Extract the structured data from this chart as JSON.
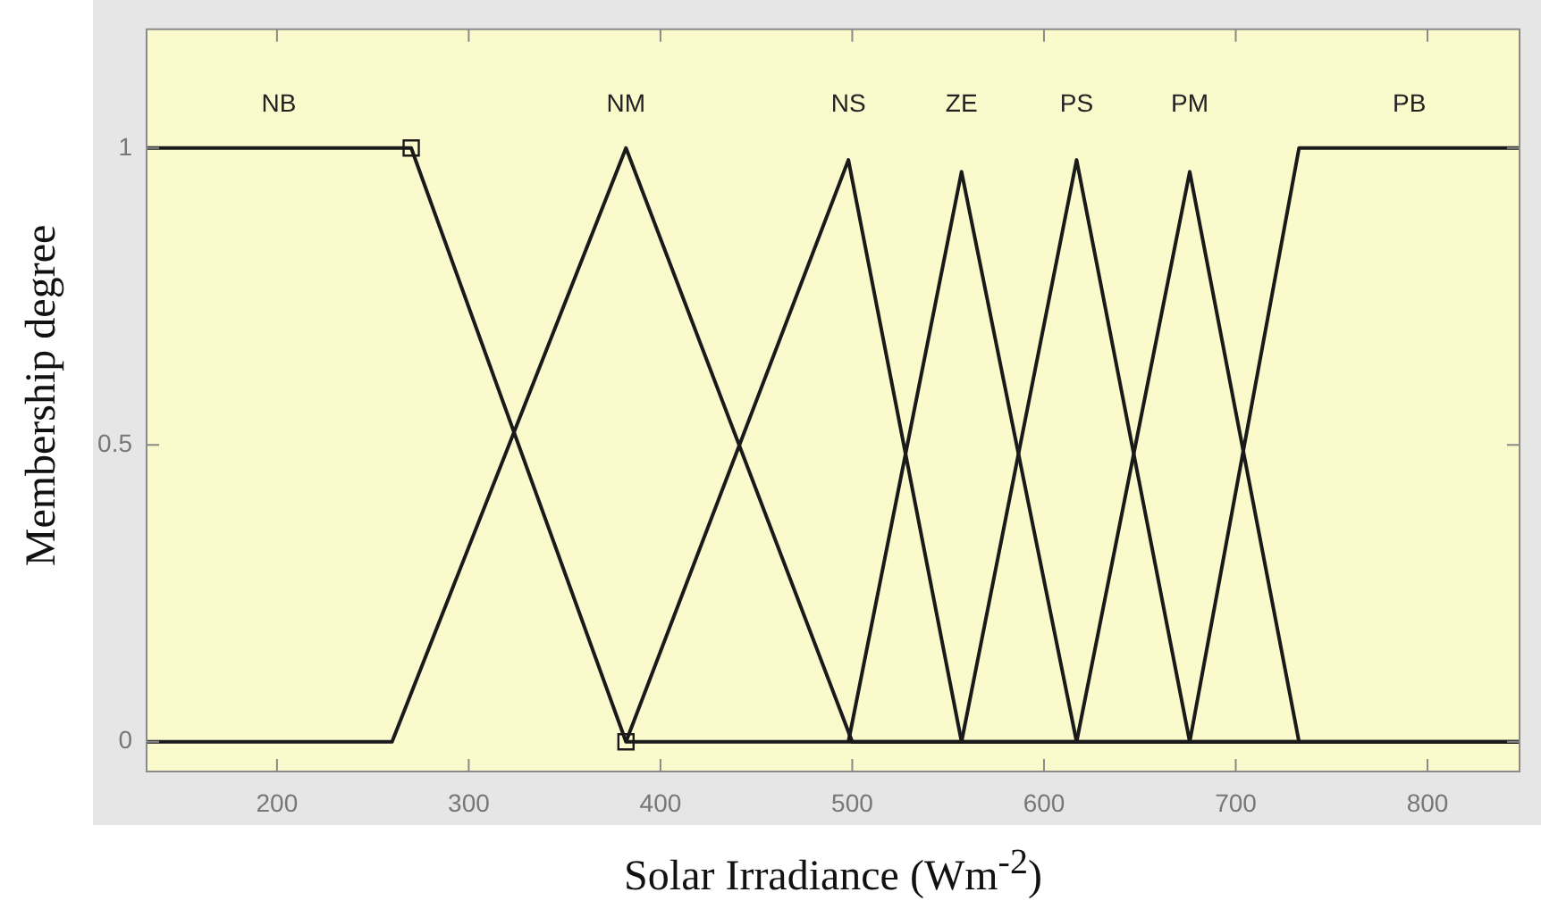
{
  "chart_data": {
    "type": "line",
    "xlabel": "Solar Irradiance (Wm$^{-2}$)",
    "ylabel": "Membership degree",
    "xlim": [
      132,
      848
    ],
    "ylim": [
      -0.05,
      1.2
    ],
    "xticks": [
      200,
      300,
      400,
      500,
      600,
      700,
      800
    ],
    "yticks": [
      0,
      0.5,
      1
    ],
    "marker": "none",
    "series": [
      {
        "name": "NB",
        "color": "#1a1a1a",
        "x": [
          132,
          270,
          382,
          848
        ],
        "values": [
          1,
          1,
          0,
          0
        ]
      },
      {
        "name": "NM",
        "color": "#1a1a1a",
        "x": [
          132,
          260,
          382,
          500,
          848
        ],
        "values": [
          0,
          0,
          1,
          0,
          0
        ]
      },
      {
        "name": "NS",
        "color": "#1a1a1a",
        "x": [
          382,
          498,
          557
        ],
        "values": [
          0,
          0.98,
          0
        ]
      },
      {
        "name": "ZE",
        "color": "#1a1a1a",
        "x": [
          498,
          557,
          617
        ],
        "values": [
          0,
          0.96,
          0
        ]
      },
      {
        "name": "PS",
        "color": "#1a1a1a",
        "x": [
          557,
          617,
          676
        ],
        "values": [
          0,
          0.98,
          0
        ]
      },
      {
        "name": "PM",
        "color": "#1a1a1a",
        "x": [
          617,
          676,
          733
        ],
        "values": [
          0,
          0.96,
          0
        ]
      },
      {
        "name": "PB",
        "color": "#1a1a1a",
        "x": [
          676,
          733,
          848
        ],
        "values": [
          0,
          1,
          1
        ]
      },
      {
        "type": "scatter",
        "marker": "square",
        "color": "#1a1a1a",
        "x": [
          270,
          382
        ],
        "values": [
          1,
          0
        ]
      }
    ]
  }
}
